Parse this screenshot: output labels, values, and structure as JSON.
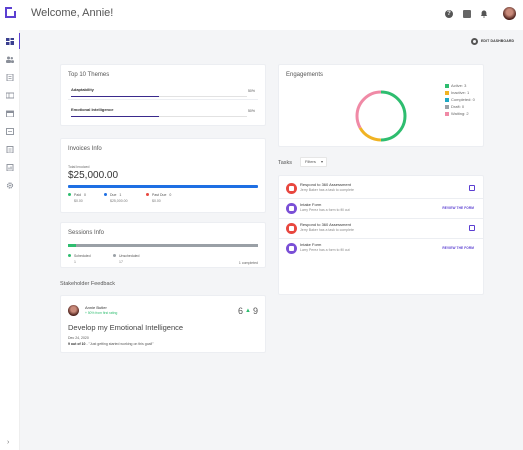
{
  "header": {
    "welcome": "Welcome, Annie!",
    "icons": [
      "help-icon",
      "chat-icon",
      "bell-icon",
      "avatar"
    ]
  },
  "toolbar": {
    "edit_dashboard_label": "EDIT DASHBOARD"
  },
  "sidebar": {
    "items": [
      "dashboard-icon",
      "people-icon",
      "document-icon",
      "id-card-icon",
      "calendar-icon",
      "list-icon",
      "clipboard-icon",
      "report-icon",
      "gear-icon"
    ],
    "expand_label": "›"
  },
  "themes": {
    "title": "Top 10 Themes",
    "items": [
      {
        "name": "Adaptability",
        "percent_label": "50%",
        "percent": 50
      },
      {
        "name": "Emotional Intelligence",
        "percent_label": "50%",
        "percent": 50
      }
    ]
  },
  "invoices": {
    "title": "Invoices Info",
    "total_label": "Total Invoiced",
    "total_amount": "$25,000.00",
    "stats": [
      {
        "label": "Paid",
        "count": "0",
        "amount": "$0.00",
        "color": "#2ebd6f"
      },
      {
        "label": "Due",
        "count": "1",
        "amount": "$25,000.00",
        "color": "#1e6fe3"
      },
      {
        "label": "Past Due",
        "count": "0",
        "amount": "$0.00",
        "color": "#e8473f"
      }
    ]
  },
  "sessions": {
    "title": "Sessions Info",
    "completed_fraction": 0.04,
    "stats": [
      {
        "label": "Scheduled",
        "value": "1",
        "color": "#2ebd6f"
      },
      {
        "label": "Unscheduled",
        "value": "17",
        "color": "#9aa0a6"
      }
    ],
    "completed_label": "1 completed"
  },
  "feedback": {
    "section_title": "Stakeholder Feedback",
    "name": "Annie Butler",
    "rating_change": "+ 50% from first rating",
    "score_from": "6",
    "score_to": "9",
    "goal_title": "Develop my Emotional Intelligence",
    "date": "Dec 24, 2020",
    "score_text": "9 out of 10",
    "quote": "- \"Just getting started working on this goal!\""
  },
  "engagements": {
    "title": "Engagements",
    "legend": [
      {
        "label": "Active: 3",
        "color": "#2ebd6f",
        "value": 3
      },
      {
        "label": "Inactive: 1",
        "color": "#f0b323",
        "value": 1
      },
      {
        "label": "Completed: 0",
        "color": "#1ea8c4",
        "value": 0
      },
      {
        "label": "Draft: 0",
        "color": "#9aa0a6",
        "value": 0
      },
      {
        "label": "Waiting: 2",
        "color": "#f08aa6",
        "value": 2
      }
    ]
  },
  "tasks": {
    "title": "Tasks",
    "filters_label": "Filters",
    "items": [
      {
        "title": "Respond to 360 Assessment",
        "subtitle": "Jerry Baker has a task to complete",
        "icon_color": "#e8473f",
        "action": "checkbox",
        "action_label": ""
      },
      {
        "title": "Intake Form",
        "subtitle": "Larry Perez has a form to fill out",
        "icon_color": "#7a4fd6",
        "action": "link",
        "action_label": "REVIEW THE FORM"
      },
      {
        "title": "Respond to 360 Assessment",
        "subtitle": "Jerry Baker has a task to complete",
        "icon_color": "#e8473f",
        "action": "checkbox",
        "action_label": ""
      },
      {
        "title": "Intake Form",
        "subtitle": "Larry Perez has a form to fill out",
        "icon_color": "#7a4fd6",
        "action": "link",
        "action_label": "REVIEW THE FORM"
      }
    ]
  }
}
